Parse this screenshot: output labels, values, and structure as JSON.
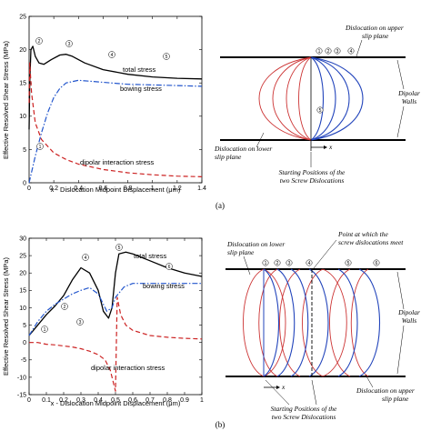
{
  "figure_a": {
    "caption": "(a)",
    "chart": {
      "ylabel": "Effective Resolved Shear Stress (MPa)",
      "xlabel": "x - Dislocation Midpoint Displacement (μm)",
      "series_labels": [
        "total stress",
        "bowing stress",
        "dipolar interaction stress"
      ]
    },
    "schematic": {
      "upper_label": [
        "Dislocation on upper",
        "slip plane"
      ],
      "lower_label": [
        "Dislocation on lower",
        "slip plane"
      ],
      "walls_label": [
        "Dipolar",
        "Walls"
      ],
      "start_label": [
        "Starting Positions of the",
        "two Screw Dislocations"
      ],
      "x_label": "x",
      "markers": [
        "1",
        "2",
        "3",
        "4",
        "5"
      ]
    }
  },
  "figure_b": {
    "caption": "(b)",
    "chart": {
      "ylabel": "Effective Resolved Shear Stress (MPa)",
      "xlabel": "x - Dislocation Midpoint Displacement (μm)",
      "series_labels": [
        "total stress",
        "bowing stress",
        "dipolar interaction stress"
      ]
    },
    "schematic": {
      "lower_label": [
        "Dislocation on lower",
        "slip plane"
      ],
      "meet_label": [
        "Point at which the",
        "screw dislocations meet"
      ],
      "walls_label": [
        "Dipolar",
        "Walls"
      ],
      "upper_label": [
        "Dislocation on upper",
        "slip plane"
      ],
      "start_label": [
        "Starting Positions of the",
        "two Screw Dislocations"
      ],
      "x_label": "x",
      "markers": [
        "1",
        "2",
        "3",
        "4",
        "5",
        "6"
      ]
    }
  },
  "chart_data": [
    {
      "type": "line",
      "title": "",
      "xlabel": "x - Dislocation Midpoint Displacement (μm)",
      "ylabel": "Effective Resolved Shear Stress (MPa)",
      "xlim": [
        0,
        1.4
      ],
      "ylim": [
        0,
        25
      ],
      "xticks": [
        "0",
        "0.2",
        "0.4",
        "0.6",
        "0.8",
        "1",
        "1.2",
        "1.4"
      ],
      "yticks": [
        "0",
        "5",
        "10",
        "15",
        "20",
        "25"
      ],
      "series": [
        {
          "name": "total stress",
          "color": "#000000",
          "dash": "solid",
          "x": [
            0,
            0.005,
            0.015,
            0.03,
            0.05,
            0.08,
            0.12,
            0.18,
            0.25,
            0.3,
            0.35,
            0.45,
            0.6,
            0.8,
            1.0,
            1.2,
            1.4
          ],
          "y": [
            8,
            15,
            20,
            20.5,
            19,
            18,
            17.8,
            18.5,
            19.2,
            19.3,
            19,
            18,
            17,
            16.3,
            15.9,
            15.7,
            15.6
          ]
        },
        {
          "name": "bowing stress",
          "color": "#2255cc",
          "dash": "dashdot",
          "x": [
            0,
            0.05,
            0.1,
            0.15,
            0.2,
            0.25,
            0.3,
            0.4,
            0.6,
            0.8,
            1.0,
            1.2,
            1.4
          ],
          "y": [
            0,
            4,
            7.5,
            10.5,
            12.8,
            14.2,
            15,
            15.4,
            15.1,
            14.8,
            14.7,
            14.6,
            14.5
          ]
        },
        {
          "name": "dipolar interaction stress",
          "color": "#cc2222",
          "dash": "dash",
          "x": [
            0,
            0.005,
            0.02,
            0.05,
            0.1,
            0.2,
            0.3,
            0.4,
            0.6,
            0.8,
            1.0,
            1.2,
            1.4
          ],
          "y": [
            12,
            18,
            13.5,
            9,
            6.5,
            4.5,
            3.5,
            2.8,
            2,
            1.5,
            1.2,
            1,
            0.9
          ]
        }
      ],
      "annotations": [
        "1",
        "2",
        "3",
        "4",
        "5"
      ]
    },
    {
      "type": "line",
      "title": "",
      "xlabel": "x - Dislocation Midpoint Displacement (μm)",
      "ylabel": "Effective Resolved Shear Stress (MPa)",
      "xlim": [
        0,
        1
      ],
      "ylim": [
        -15,
        30
      ],
      "xticks": [
        "0",
        "0.1",
        "0.2",
        "0.3",
        "0.4",
        "0.5",
        "0.6",
        "0.7",
        "0.8",
        "0.9",
        "1"
      ],
      "yticks": [
        "-15",
        "-10",
        "-5",
        "0",
        "5",
        "10",
        "15",
        "20",
        "25",
        "30"
      ],
      "series": [
        {
          "name": "total stress",
          "color": "#000000",
          "dash": "solid",
          "x": [
            0,
            0.05,
            0.1,
            0.15,
            0.2,
            0.25,
            0.3,
            0.35,
            0.4,
            0.43,
            0.46,
            0.48,
            0.5,
            0.52,
            0.56,
            0.6,
            0.65,
            0.7,
            0.8,
            0.9,
            1.0
          ],
          "y": [
            2,
            5,
            8,
            10.5,
            13.5,
            18,
            21.5,
            20,
            15,
            9,
            7,
            10,
            20,
            25.5,
            26,
            25.5,
            24.5,
            23.5,
            21.5,
            20,
            19
          ]
        },
        {
          "name": "bowing stress",
          "color": "#2255cc",
          "dash": "dashdot",
          "x": [
            0,
            0.05,
            0.1,
            0.15,
            0.2,
            0.25,
            0.3,
            0.35,
            0.4,
            0.45,
            0.48,
            0.5,
            0.55,
            0.6,
            0.7,
            0.8,
            0.9,
            1.0
          ],
          "y": [
            2,
            6,
            9,
            11,
            12.5,
            14,
            15,
            15.8,
            14,
            9,
            10,
            13,
            16,
            17,
            17,
            17,
            17,
            17
          ]
        },
        {
          "name": "dipolar interaction stress",
          "color": "#cc2222",
          "dash": "dash",
          "x": [
            0,
            0.05,
            0.1,
            0.15,
            0.2,
            0.25,
            0.3,
            0.35,
            0.4,
            0.44,
            0.47,
            0.49,
            0.5,
            0.51,
            0.53,
            0.56,
            0.6,
            0.7,
            0.8,
            0.9,
            1.0
          ],
          "y": [
            0,
            0,
            -0.5,
            -0.7,
            -1,
            -1.3,
            -1.8,
            -2.5,
            -3.5,
            -5,
            -8,
            -12,
            -14,
            13,
            8,
            5,
            3.5,
            2,
            1.5,
            1.2,
            1
          ]
        }
      ],
      "annotations": [
        "1",
        "2",
        "3",
        "4",
        "5",
        "6"
      ]
    }
  ]
}
